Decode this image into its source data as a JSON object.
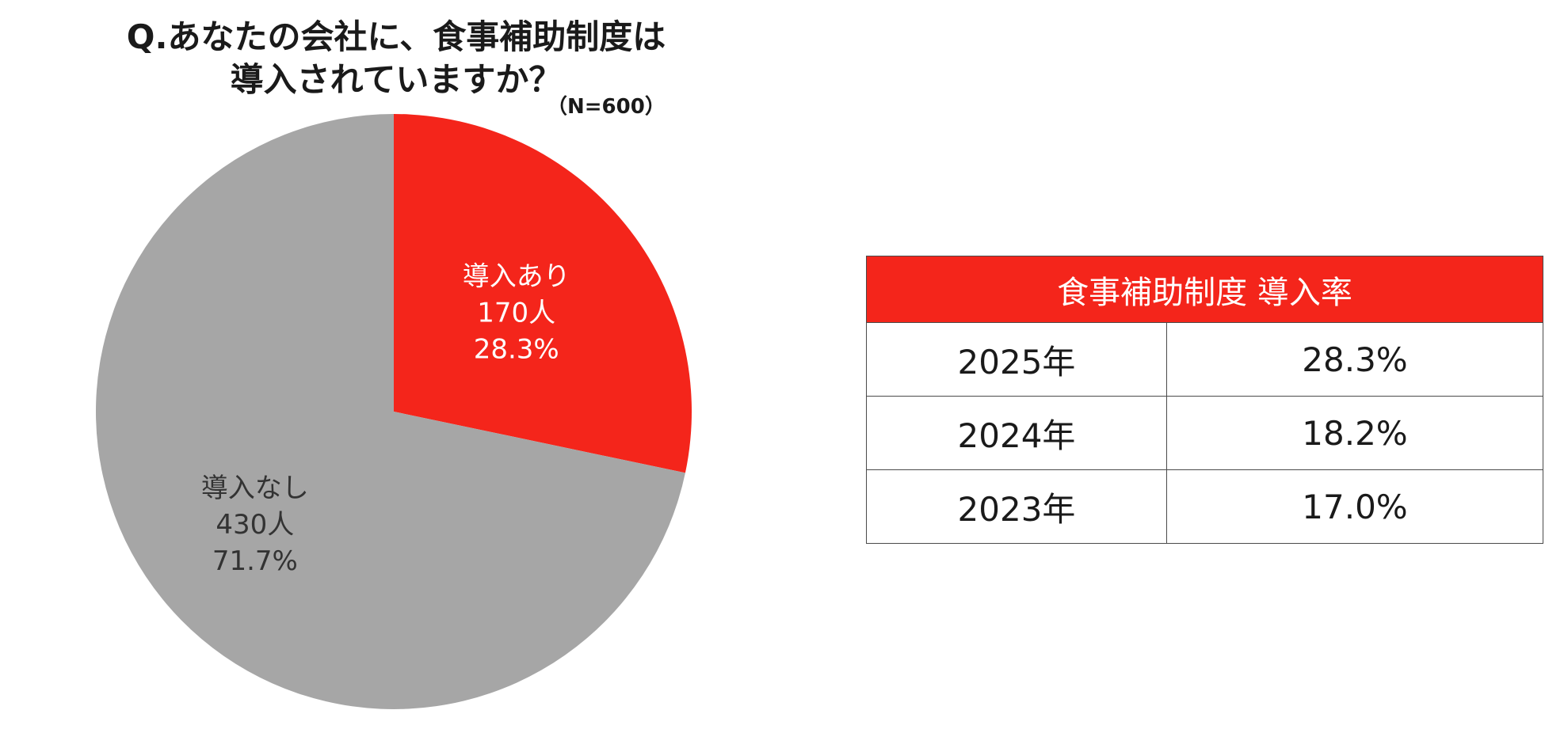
{
  "chart_data": [
    {
      "type": "pie",
      "title_line1": "Q.あなたの会社に、食事補助制度は",
      "title_line2": "導入されていますか？",
      "sample_size": "（N=600）",
      "slices": [
        {
          "name": "導入あり",
          "count_label": "170人",
          "percent_label": "28.3%",
          "value": 28.3,
          "color": "#f4251b",
          "text_color": "#ffffff"
        },
        {
          "name": "導入なし",
          "count_label": "430人",
          "percent_label": "71.7%",
          "value": 71.7,
          "color": "#a6a6a6",
          "text_color": "#333333"
        }
      ],
      "start_angle_deg": 0,
      "direction": "clockwise"
    },
    {
      "type": "table",
      "title": "食事補助制度 導入率",
      "header_color": "#f4251b",
      "rows": [
        {
          "year": "2025年",
          "rate": "28.3%"
        },
        {
          "year": "2024年",
          "rate": "18.2%"
        },
        {
          "year": "2023年",
          "rate": "17.0%"
        }
      ]
    }
  ]
}
